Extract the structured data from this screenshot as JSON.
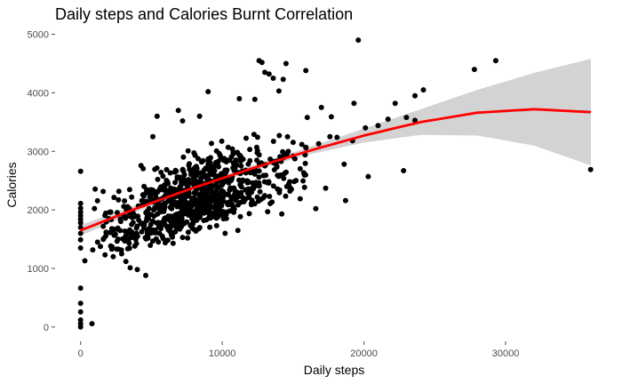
{
  "chart_data": {
    "type": "scatter",
    "title": "Daily steps and Calories Burnt Correlation",
    "xlabel": "Daily steps",
    "ylabel": "Calories",
    "xlim": [
      -1800,
      36020
    ],
    "ylim": [
      -245,
      5130
    ],
    "x_ticks": [
      0,
      10000,
      20000,
      30000
    ],
    "y_ticks": [
      0,
      1000,
      2000,
      3000,
      4000,
      5000
    ],
    "x_tick_labels": [
      "0",
      "10000",
      "20000",
      "30000"
    ],
    "y_tick_labels": [
      "0",
      "1000",
      "2000",
      "3000",
      "4000",
      "5000"
    ],
    "grid": false,
    "point_color": "#000000",
    "trend": {
      "method": "smooth",
      "color": "#ff0000",
      "band_color": "#d3d3d3",
      "curve": [
        [
          0,
          1650
        ],
        [
          4000,
          2030
        ],
        [
          8000,
          2380
        ],
        [
          12000,
          2700
        ],
        [
          16000,
          3000
        ],
        [
          20000,
          3270
        ],
        [
          24000,
          3500
        ],
        [
          28000,
          3660
        ],
        [
          32000,
          3720
        ],
        [
          36020,
          3670
        ]
      ],
      "band_upper": [
        [
          0,
          1740
        ],
        [
          4000,
          2090
        ],
        [
          8000,
          2430
        ],
        [
          12000,
          2750
        ],
        [
          16000,
          3060
        ],
        [
          20000,
          3390
        ],
        [
          24000,
          3720
        ],
        [
          28000,
          4050
        ],
        [
          32000,
          4340
        ],
        [
          36020,
          4580
        ]
      ],
      "band_lower": [
        [
          0,
          1560
        ],
        [
          4000,
          1970
        ],
        [
          8000,
          2330
        ],
        [
          12000,
          2650
        ],
        [
          16000,
          2940
        ],
        [
          20000,
          3150
        ],
        [
          24000,
          3280
        ],
        [
          28000,
          3270
        ],
        [
          32000,
          3100
        ],
        [
          36020,
          2760
        ]
      ]
    },
    "points": [
      [
        0,
        0
      ],
      [
        0,
        57
      ],
      [
        0,
        120
      ],
      [
        0,
        257
      ],
      [
        0,
        403
      ],
      [
        0,
        665
      ],
      [
        0,
        1350
      ],
      [
        0,
        1490
      ],
      [
        0,
        1600
      ],
      [
        0,
        1700
      ],
      [
        0,
        1780
      ],
      [
        0,
        1840
      ],
      [
        0,
        1900
      ],
      [
        0,
        1960
      ],
      [
        0,
        2030
      ],
      [
        0,
        2110
      ],
      [
        0,
        2660
      ],
      [
        300,
        1130
      ],
      [
        800,
        57
      ],
      [
        1200,
        1450
      ],
      [
        1600,
        1720
      ],
      [
        19600,
        4900
      ],
      [
        29300,
        4550
      ],
      [
        27800,
        4400
      ],
      [
        36000,
        2690
      ],
      [
        15900,
        4380
      ],
      [
        20300,
        2570
      ],
      [
        21700,
        3550
      ],
      [
        23600,
        3950
      ],
      [
        24200,
        4050
      ],
      [
        22800,
        2670
      ],
      [
        18700,
        2160
      ],
      [
        17300,
        2370
      ],
      [
        19200,
        3180
      ],
      [
        20100,
        3400
      ],
      [
        21000,
        3440
      ],
      [
        22200,
        3820
      ],
      [
        23000,
        3580
      ],
      [
        23600,
        3530
      ],
      [
        18600,
        2780
      ],
      [
        13600,
        4250
      ],
      [
        12600,
        4550
      ],
      [
        12800,
        4520
      ],
      [
        14500,
        4500
      ],
      [
        14300,
        4230
      ],
      [
        9000,
        4020
      ],
      [
        8400,
        3600
      ],
      [
        11200,
        3900
      ],
      [
        12300,
        3890
      ],
      [
        13000,
        4350
      ],
      [
        13300,
        4320
      ],
      [
        14000,
        4030
      ],
      [
        5400,
        3600
      ],
      [
        5100,
        3250
      ],
      [
        6900,
        3700
      ],
      [
        7200,
        3520
      ],
      [
        16000,
        3580
      ],
      [
        17000,
        3750
      ],
      [
        17700,
        3590
      ],
      [
        19300,
        3820
      ],
      [
        15900,
        3060
      ],
      [
        16800,
        3130
      ],
      [
        17600,
        3250
      ],
      [
        18100,
        3240
      ],
      [
        16600,
        2020
      ],
      [
        15500,
        2190
      ],
      [
        14200,
        1930
      ],
      [
        13200,
        1970
      ],
      [
        11100,
        1650
      ],
      [
        10200,
        1600
      ],
      [
        9600,
        1730
      ],
      [
        8700,
        1820
      ],
      [
        7200,
        1530
      ],
      [
        3500,
        1010
      ],
      [
        4000,
        980
      ],
      [
        4600,
        880
      ],
      [
        3200,
        1120
      ],
      [
        2900,
        1250
      ],
      [
        2300,
        1200
      ],
      [
        2200,
        1330
      ],
      [
        1800,
        1620
      ]
    ],
    "point_seed": 7,
    "point_count": 880
  }
}
